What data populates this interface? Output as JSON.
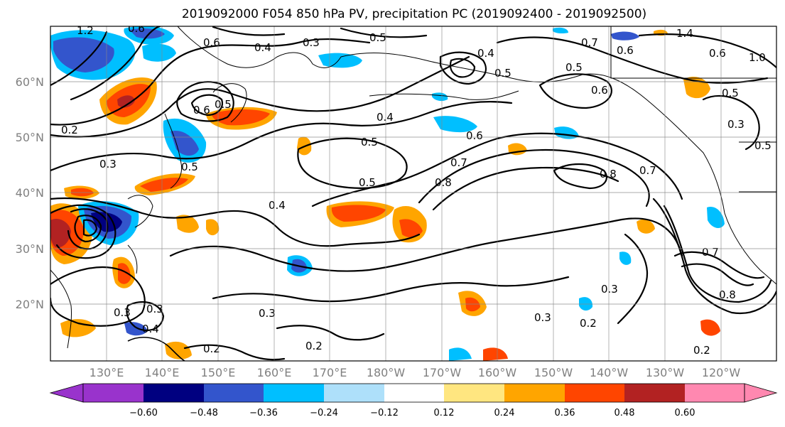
{
  "title": "2019092000 F054 850 hPa PV, precipitation PC (2019092400 - 2019092500)",
  "map": {
    "lat_labels": [
      "60°N",
      "50°N",
      "40°N",
      "30°N",
      "20°N"
    ],
    "lon_labels": [
      "130°E",
      "140°E",
      "150°E",
      "160°E",
      "170°E",
      "180°W",
      "170°W",
      "160°W",
      "150°W",
      "140°W",
      "130°W",
      "120°W"
    ],
    "contour_labels": [
      "1.2",
      "0.6",
      "0.6",
      "0.4",
      "0.3",
      "0.5",
      "0.7",
      "0.6",
      "1.4",
      "0.6",
      "1.0",
      "0.4",
      "0.5",
      "0.5",
      "0.6",
      "0.5",
      "0.2",
      "0.6",
      "0.5",
      "0.4",
      "0.5",
      "0.6",
      "0.3",
      "0.5",
      "0.3",
      "0.5",
      "0.5",
      "0.8",
      "0.7",
      "0.8",
      "0.7",
      "0.4",
      "0.7",
      "0.8",
      "0.3",
      "0.3",
      "0.2",
      "0.3",
      "0.4",
      "0.2",
      "0.3",
      "0.2",
      "0.3",
      "0.2"
    ]
  },
  "colorbar": {
    "colors": [
      "#9933cc",
      "#000080",
      "#3355cc",
      "#00bfff",
      "#aee0fa",
      "#ffffff",
      "#ffe680",
      "#ffa500",
      "#ff4500",
      "#b22222",
      "#ff88b0"
    ],
    "tick_labels": [
      "−0.60",
      "−0.48",
      "−0.36",
      "−0.24",
      "−0.12",
      "0.12",
      "0.24",
      "0.36",
      "0.48",
      "0.60"
    ]
  }
}
